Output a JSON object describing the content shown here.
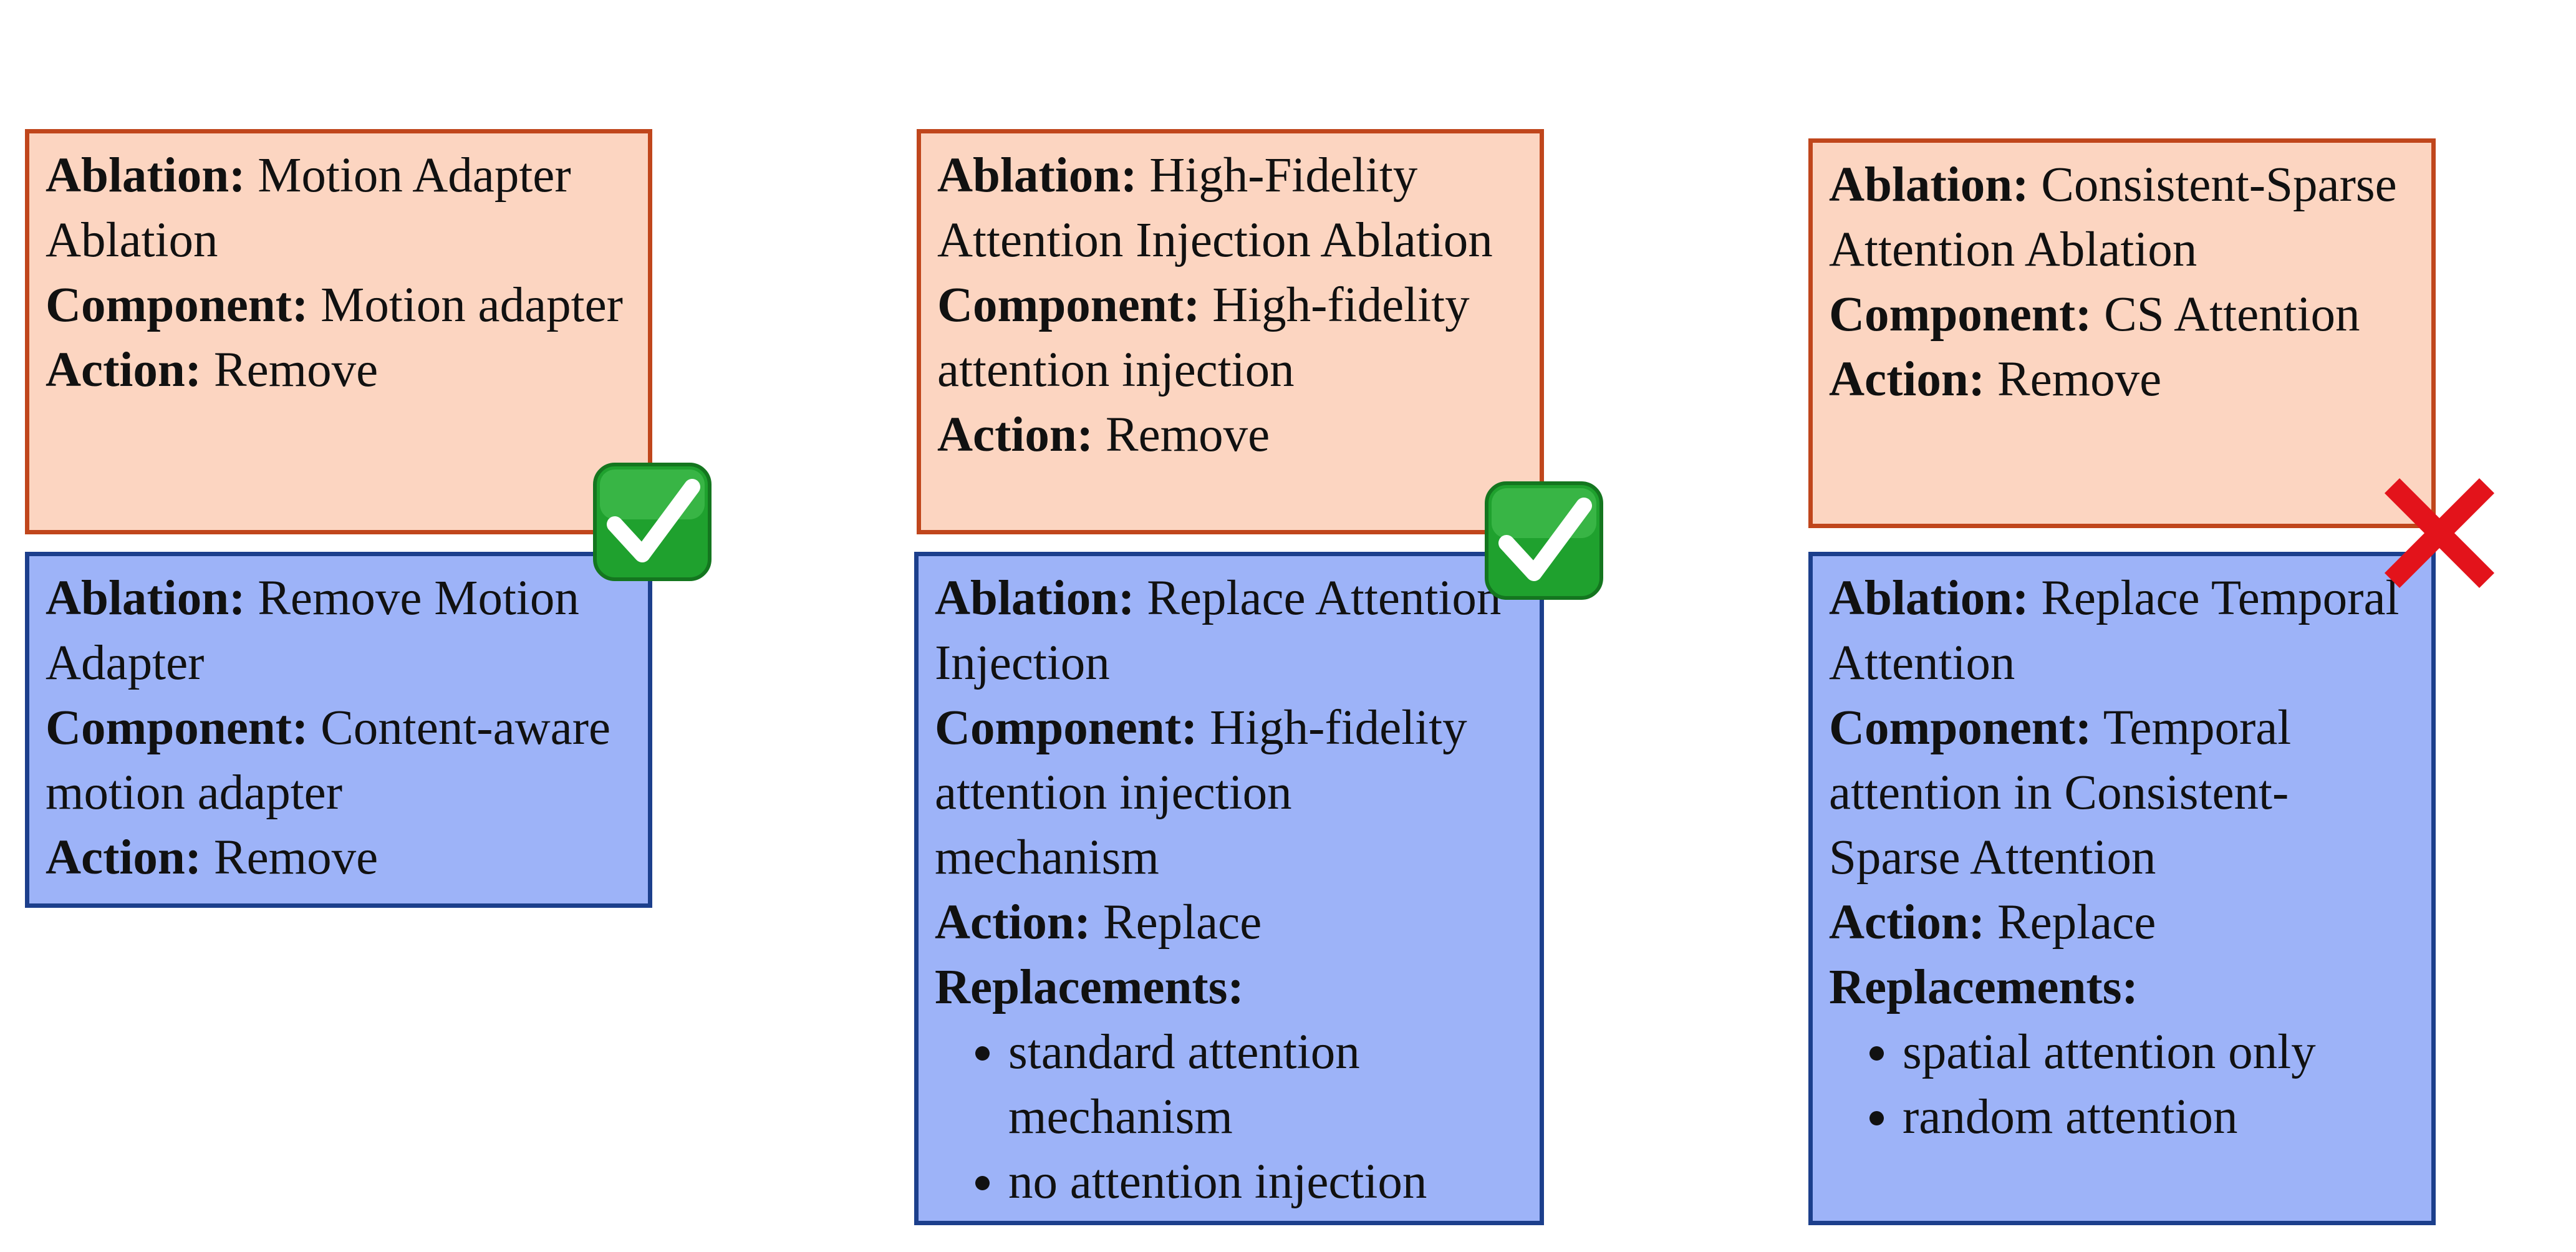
{
  "labels": {
    "ablation": "Ablation:",
    "component": "Component:",
    "action": "Action:",
    "replacements": "Replacements:"
  },
  "columns": [
    {
      "ground_truth": {
        "ablation": "Motion Adapter Ablation",
        "component": "Motion adapter",
        "action": "Remove"
      },
      "predicted": {
        "ablation": "Remove Motion Adapter",
        "component": "Content-aware motion adapter",
        "action": "Remove"
      },
      "verdict": "check-mark-icon",
      "verdict_color": "#1fa12e"
    },
    {
      "ground_truth": {
        "ablation": "High-Fidelity Attention Injection Ablation",
        "component": "High-fidelity attention injection",
        "action": "Remove"
      },
      "predicted": {
        "ablation": "Replace Attention Injection",
        "component": "High-fidelity attention injection mechanism",
        "action": "Replace",
        "replacements": [
          "standard attention mechanism",
          "no attention injection"
        ]
      },
      "verdict": "check-mark-icon",
      "verdict_color": "#1fa12e"
    },
    {
      "ground_truth": {
        "ablation": "Consistent-Sparse Attention Ablation",
        "component": "CS Attention",
        "action": "Remove"
      },
      "predicted": {
        "ablation": "Replace Temporal Attention",
        "component": "Temporal attention in Consistent-Sparse Attention",
        "action": "Replace",
        "replacements": [
          "spatial attention only",
          "random attention"
        ]
      },
      "verdict": "cross-mark-icon",
      "verdict_color": "#e3131b"
    }
  ],
  "colors": {
    "ground_truth_fill": "#fcd5c1",
    "ground_truth_border": "#c0461c",
    "predicted_fill": "#9db3f8",
    "predicted_border": "#1c3f8c"
  }
}
